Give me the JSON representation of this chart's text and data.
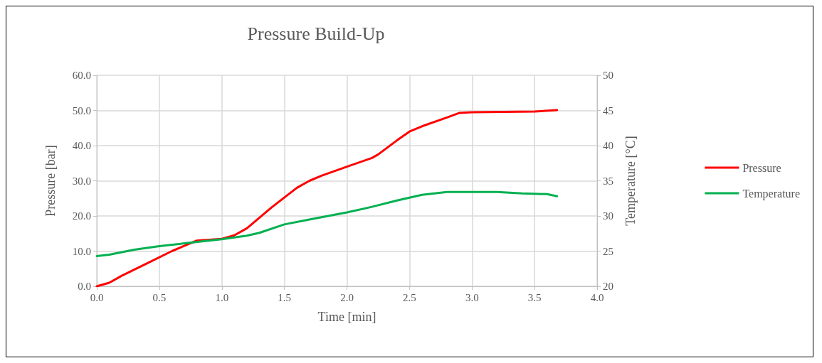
{
  "chart_data": {
    "type": "line",
    "title": "Pressure Build-Up",
    "xlabel": "Time [min]",
    "ylabel": "Pressure [bar]",
    "y2label": "Temperature [°C]",
    "xlim": [
      0,
      4
    ],
    "xticks": [
      {
        "value": 0,
        "label": "0.0"
      },
      {
        "value": 0.5,
        "label": "0.5"
      },
      {
        "value": 1,
        "label": "1.0"
      },
      {
        "value": 1.5,
        "label": "1.5"
      },
      {
        "value": 2,
        "label": "2.0"
      },
      {
        "value": 2.5,
        "label": "2.5"
      },
      {
        "value": 3,
        "label": "3.0"
      },
      {
        "value": 3.5,
        "label": "3.5"
      },
      {
        "value": 4,
        "label": "4.0"
      }
    ],
    "ylim": [
      0,
      60
    ],
    "yticks": [
      {
        "value": 0,
        "label": "0.0"
      },
      {
        "value": 10,
        "label": "10.0"
      },
      {
        "value": 20,
        "label": "20.0"
      },
      {
        "value": 30,
        "label": "30.0"
      },
      {
        "value": 40,
        "label": "40.0"
      },
      {
        "value": 50,
        "label": "50.0"
      },
      {
        "value": 60,
        "label": "60.0"
      }
    ],
    "y2lim": [
      20,
      50
    ],
    "y2ticks": [
      20,
      25,
      30,
      35,
      40,
      45,
      50
    ],
    "grid": true,
    "legend": "right",
    "marker": "none",
    "series": [
      {
        "name": "Pressure",
        "color": "#ff0000",
        "x": [
          0,
          0.1,
          0.2,
          0.4,
          0.6,
          0.8,
          1.0,
          1.1,
          1.2,
          1.4,
          1.6,
          1.7,
          1.8,
          2.0,
          2.2,
          2.25,
          2.4,
          2.5,
          2.6,
          2.8,
          2.9,
          3.0,
          3.5,
          3.68
        ],
        "values": [
          0,
          1,
          3,
          6.5,
          10,
          13,
          13.5,
          14.5,
          16.5,
          22.5,
          28,
          30,
          31.5,
          34,
          36.5,
          37.5,
          41.5,
          44,
          45.5,
          48,
          49.3,
          49.5,
          49.7,
          50.1
        ]
      },
      {
        "name": "Temperature",
        "color": "#00b050",
        "axis": "y2",
        "x": [
          0,
          0.1,
          0.3,
          0.5,
          0.7,
          1.0,
          1.2,
          1.3,
          1.5,
          1.7,
          2.0,
          2.2,
          2.4,
          2.6,
          2.8,
          3.0,
          3.2,
          3.4,
          3.6,
          3.68
        ],
        "values": [
          24.3,
          24.5,
          25.2,
          25.7,
          26.1,
          26.7,
          27.2,
          27.6,
          28.8,
          29.5,
          30.5,
          31.3,
          32.2,
          33.0,
          33.4,
          33.4,
          33.4,
          33.2,
          33.1,
          32.8
        ]
      }
    ]
  }
}
